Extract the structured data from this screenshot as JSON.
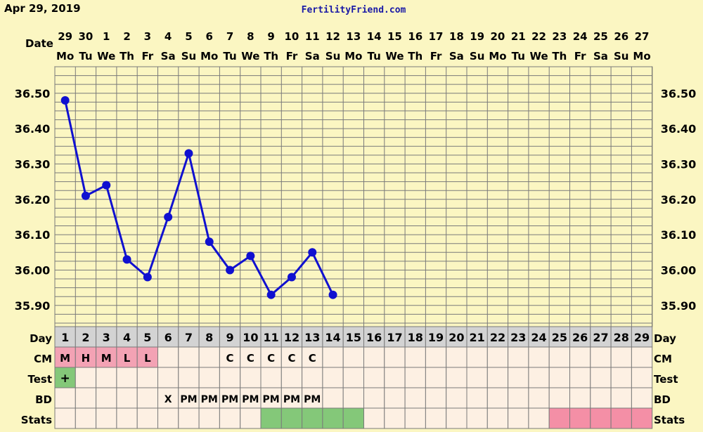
{
  "header": {
    "date_label": "Apr 29, 2019",
    "site_name": "FertilityFriend.com"
  },
  "labels": {
    "date": "Date",
    "day": "Day",
    "cm": "CM",
    "test": "Test",
    "bd": "BD",
    "stats": "Stats"
  },
  "dates": [
    "29",
    "30",
    "1",
    "2",
    "3",
    "4",
    "5",
    "6",
    "7",
    "8",
    "9",
    "10",
    "11",
    "12",
    "13",
    "14",
    "15",
    "16",
    "17",
    "18",
    "19",
    "20",
    "21",
    "22",
    "23",
    "24",
    "25",
    "26",
    "27"
  ],
  "weekdays": [
    "Mo",
    "Tu",
    "We",
    "Th",
    "Fr",
    "Sa",
    "Su",
    "Mo",
    "Tu",
    "We",
    "Th",
    "Fr",
    "Sa",
    "Su",
    "Mo",
    "Tu",
    "We",
    "Th",
    "Fr",
    "Sa",
    "Su",
    "Mo",
    "Tu",
    "We",
    "Th",
    "Fr",
    "Sa",
    "Su",
    "Mo"
  ],
  "cycle_days": [
    "1",
    "2",
    "3",
    "4",
    "5",
    "6",
    "7",
    "8",
    "9",
    "10",
    "11",
    "12",
    "13",
    "14",
    "15",
    "16",
    "17",
    "18",
    "19",
    "20",
    "21",
    "22",
    "23",
    "24",
    "25",
    "26",
    "27",
    "28",
    "29"
  ],
  "cm": [
    "M",
    "H",
    "M",
    "L",
    "L",
    "",
    "",
    "",
    "C",
    "C",
    "C",
    "C",
    "C",
    "",
    "",
    "",
    "",
    "",
    "",
    "",
    "",
    "",
    "",
    "",
    "",
    "",
    "",
    "",
    ""
  ],
  "cm_colored": [
    true,
    true,
    true,
    true,
    true,
    false,
    false,
    false,
    false,
    false,
    false,
    false,
    false,
    false,
    false,
    false,
    false,
    false,
    false,
    false,
    false,
    false,
    false,
    false,
    false,
    false,
    false,
    false,
    false
  ],
  "test": [
    "+",
    "",
    "",
    "",
    "",
    "",
    "",
    "",
    "",
    "",
    "",
    "",
    "",
    "",
    "",
    "",
    "",
    "",
    "",
    "",
    "",
    "",
    "",
    "",
    "",
    "",
    "",
    "",
    ""
  ],
  "bd": [
    "",
    "",
    "",
    "",
    "",
    "X",
    "PM",
    "PM",
    "PM",
    "PM",
    "PM",
    "PM",
    "PM",
    "",
    "",
    "",
    "",
    "",
    "",
    "",
    "",
    "",
    "",
    "",
    "",
    "",
    "",
    "",
    ""
  ],
  "stats": [
    "none",
    "none",
    "none",
    "none",
    "none",
    "none",
    "none",
    "none",
    "none",
    "none",
    "fertile",
    "fertile",
    "fertile",
    "fertile",
    "fertile",
    "none",
    "none",
    "none",
    "none",
    "none",
    "none",
    "none",
    "none",
    "none",
    "luteal",
    "luteal",
    "luteal",
    "luteal",
    "luteal"
  ],
  "colors": {
    "background": "#fbf6c2",
    "grid_line": "#7a7a7a",
    "line": "#1010d0",
    "day_row": "#d3d3d3",
    "cm_pink": "#f3a2b4",
    "test_green": "#84c879",
    "stats_green": "#84c879",
    "stats_pink": "#f48fa6",
    "cell_bg": "#fdf0e3",
    "site_text": "#1a1aa6"
  },
  "chart_data": {
    "type": "line",
    "x": [
      1,
      2,
      3,
      4,
      5,
      6,
      7,
      8,
      9,
      10,
      11,
      12,
      13,
      14
    ],
    "series": [
      {
        "values": [
          36.48,
          36.21,
          36.24,
          36.03,
          35.98,
          36.15,
          36.33,
          36.08,
          36.0,
          36.04,
          35.93,
          35.98,
          36.05,
          35.93
        ]
      }
    ],
    "ylim": [
      35.85,
      36.6
    ],
    "yticks": [
      "36.50",
      "36.40",
      "36.30",
      "36.20",
      "36.10",
      "36.00",
      "35.90"
    ],
    "grid": true
  }
}
